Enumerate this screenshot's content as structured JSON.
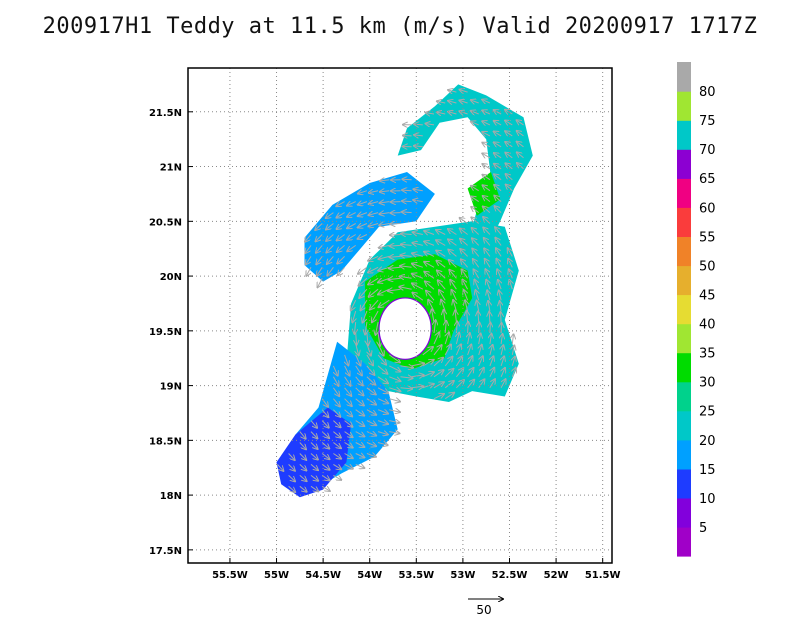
{
  "title": "200917H1 Teddy at 11.5 km (m/s) Valid 20200917 1717Z",
  "chart_data": {
    "type": "heatmap",
    "title": "200917H1 Teddy at 11.5 km (m/s) Valid 20200917 1717Z",
    "storm": "Teddy",
    "level": "11.5 km",
    "units": "m/s",
    "valid": "20200917 1717Z",
    "xlim": [
      -55.95,
      -51.4
    ],
    "ylim": [
      17.38,
      21.9
    ],
    "grid": true,
    "x_ticks": [
      {
        "value": -55.5,
        "label": "55.5W"
      },
      {
        "value": -55.0,
        "label": "55W"
      },
      {
        "value": -54.5,
        "label": "54.5W"
      },
      {
        "value": -54.0,
        "label": "54W"
      },
      {
        "value": -53.5,
        "label": "53.5W"
      },
      {
        "value": -53.0,
        "label": "53W"
      },
      {
        "value": -52.5,
        "label": "52.5W"
      },
      {
        "value": -52.0,
        "label": "52W"
      },
      {
        "value": -51.5,
        "label": "51.5W"
      }
    ],
    "y_ticks": [
      {
        "value": 17.5,
        "label": "17.5N"
      },
      {
        "value": 18.0,
        "label": "18N"
      },
      {
        "value": 18.5,
        "label": "18.5N"
      },
      {
        "value": 19.0,
        "label": "19N"
      },
      {
        "value": 19.5,
        "label": "19.5N"
      },
      {
        "value": 20.0,
        "label": "20N"
      },
      {
        "value": 20.5,
        "label": "20.5N"
      },
      {
        "value": 21.0,
        "label": "21N"
      },
      {
        "value": 21.5,
        "label": "21.5N"
      }
    ],
    "colorbar": {
      "labels": [
        "5",
        "10",
        "15",
        "20",
        "25",
        "30",
        "35",
        "40",
        "45",
        "50",
        "55",
        "60",
        "65",
        "70",
        "75",
        "80"
      ],
      "colors": [
        "#a000c8",
        "#8200dc",
        "#1e3cff",
        "#00a0ff",
        "#00c8c8",
        "#00d28c",
        "#00dc00",
        "#a0e632",
        "#e6dc32",
        "#e6af2d",
        "#f08228",
        "#fa3c3c",
        "#f00082",
        "#8c00d2",
        "#00c8c8",
        "#a0e632",
        "#a9a9a9"
      ]
    },
    "center": {
      "lon": -53.62,
      "lat": 19.52
    },
    "eye_radius_deg": 0.28,
    "reference_vector": {
      "value": 50,
      "label": "50"
    },
    "regions": [
      {
        "name": "north-arc",
        "color": "#00c8c8",
        "points": [
          [
            -53.05,
            21.75
          ],
          [
            -52.75,
            21.65
          ],
          [
            -52.35,
            21.45
          ],
          [
            -52.25,
            21.1
          ],
          [
            -52.45,
            20.8
          ],
          [
            -52.6,
            20.5
          ],
          [
            -52.75,
            20.25
          ],
          [
            -52.95,
            20.3
          ],
          [
            -52.85,
            20.6
          ],
          [
            -52.7,
            20.9
          ],
          [
            -52.75,
            21.25
          ],
          [
            -52.95,
            21.45
          ],
          [
            -53.25,
            21.4
          ],
          [
            -53.45,
            21.15
          ],
          [
            -53.7,
            21.1
          ],
          [
            -53.6,
            21.35
          ],
          [
            -53.3,
            21.55
          ]
        ]
      },
      {
        "name": "northwest-band",
        "color": "#00a0ff",
        "points": [
          [
            -54.7,
            20.35
          ],
          [
            -54.4,
            20.65
          ],
          [
            -54.0,
            20.85
          ],
          [
            -53.6,
            20.95
          ],
          [
            -53.3,
            20.75
          ],
          [
            -53.5,
            20.5
          ],
          [
            -53.9,
            20.45
          ],
          [
            -54.1,
            20.25
          ],
          [
            -54.3,
            20.05
          ],
          [
            -54.5,
            19.95
          ],
          [
            -54.7,
            20.1
          ]
        ]
      },
      {
        "name": "core-ring",
        "color": "#00c8c8",
        "points": [
          [
            -54.25,
            19.2
          ],
          [
            -54.2,
            19.75
          ],
          [
            -54.0,
            20.15
          ],
          [
            -53.7,
            20.4
          ],
          [
            -53.3,
            20.45
          ],
          [
            -52.9,
            20.5
          ],
          [
            -52.55,
            20.45
          ],
          [
            -52.4,
            20.05
          ],
          [
            -52.55,
            19.6
          ],
          [
            -52.4,
            19.2
          ],
          [
            -52.55,
            18.9
          ],
          [
            -52.9,
            18.95
          ],
          [
            -53.15,
            18.85
          ],
          [
            -53.5,
            18.9
          ],
          [
            -53.8,
            18.95
          ],
          [
            -54.05,
            19.0
          ]
        ]
      },
      {
        "name": "south-band",
        "color": "#00a0ff",
        "points": [
          [
            -54.35,
            19.4
          ],
          [
            -54.05,
            19.2
          ],
          [
            -53.8,
            18.95
          ],
          [
            -53.7,
            18.6
          ],
          [
            -53.95,
            18.35
          ],
          [
            -54.3,
            18.2
          ],
          [
            -54.7,
            18.0
          ],
          [
            -54.95,
            18.2
          ],
          [
            -54.8,
            18.55
          ],
          [
            -54.55,
            18.8
          ],
          [
            -54.45,
            19.1
          ]
        ]
      },
      {
        "name": "southwest-low-speed",
        "color": "#1e3cff",
        "points": [
          [
            -55.0,
            18.3
          ],
          [
            -54.8,
            18.55
          ],
          [
            -54.45,
            18.8
          ],
          [
            -54.2,
            18.65
          ],
          [
            -54.25,
            18.3
          ],
          [
            -54.5,
            18.05
          ],
          [
            -54.75,
            17.98
          ],
          [
            -54.95,
            18.1
          ]
        ]
      },
      {
        "name": "core-green",
        "color": "#00dc00",
        "points": [
          [
            -54.05,
            19.95
          ],
          [
            -53.7,
            20.15
          ],
          [
            -53.3,
            20.2
          ],
          [
            -52.95,
            20.05
          ],
          [
            -52.9,
            19.8
          ],
          [
            -53.1,
            19.5
          ],
          [
            -53.2,
            19.25
          ],
          [
            -53.55,
            19.15
          ],
          [
            -53.85,
            19.25
          ],
          [
            -54.05,
            19.55
          ]
        ]
      },
      {
        "name": "northeast-green",
        "color": "#00dc00",
        "points": [
          [
            -52.95,
            20.8
          ],
          [
            -52.7,
            20.95
          ],
          [
            -52.6,
            20.7
          ],
          [
            -52.85,
            20.55
          ]
        ]
      }
    ]
  }
}
